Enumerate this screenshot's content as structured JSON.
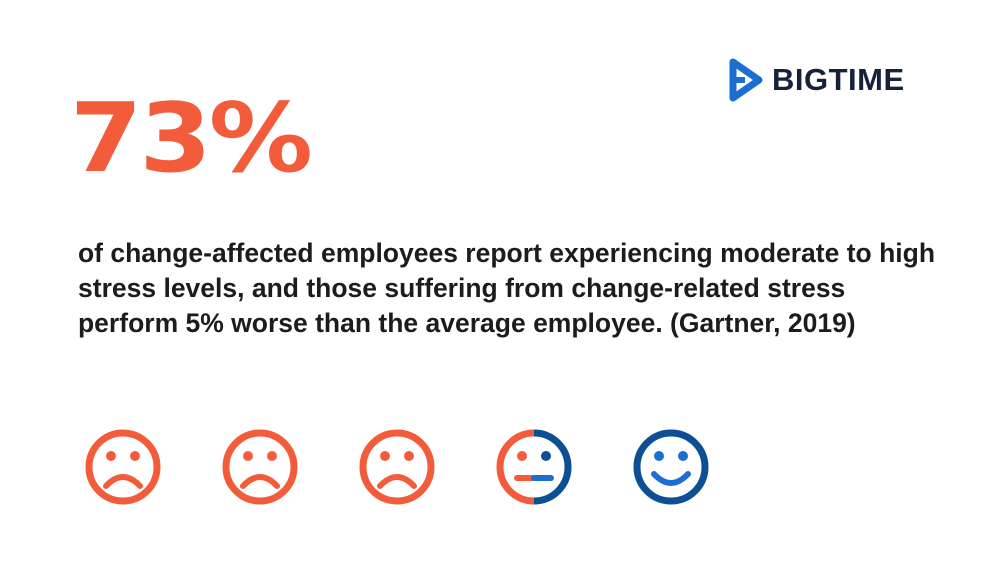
{
  "brand": {
    "name": "BIGTIME",
    "logo_icon": "bigtime-play-logo-icon",
    "color": "#1c6fd1",
    "text_color": "#16213a"
  },
  "stat": {
    "value": "73%",
    "color": "#f25c3b"
  },
  "description": {
    "text": "of change-affected employees report experiencing moderate to high stress levels, and those suffering from change-related stress perform 5% worse than the average employee. (Gartner, 2019)"
  },
  "faces": [
    {
      "icon": "sad-face-icon",
      "mood": "sad",
      "color": "#f25c3b"
    },
    {
      "icon": "sad-face-icon",
      "mood": "sad",
      "color": "#f25c3b"
    },
    {
      "icon": "sad-face-icon",
      "mood": "sad",
      "color": "#f25c3b"
    },
    {
      "icon": "neutral-face-icon",
      "mood": "neutral",
      "color": "#f25c3b",
      "secondary_color": "#0d4f94"
    },
    {
      "icon": "happy-face-icon",
      "mood": "happy",
      "color": "#0d4f94"
    }
  ],
  "colors": {
    "accent": "#f25c3b",
    "secondary": "#0d4f94",
    "text": "#1c1c1c",
    "background": "#ffffff"
  }
}
